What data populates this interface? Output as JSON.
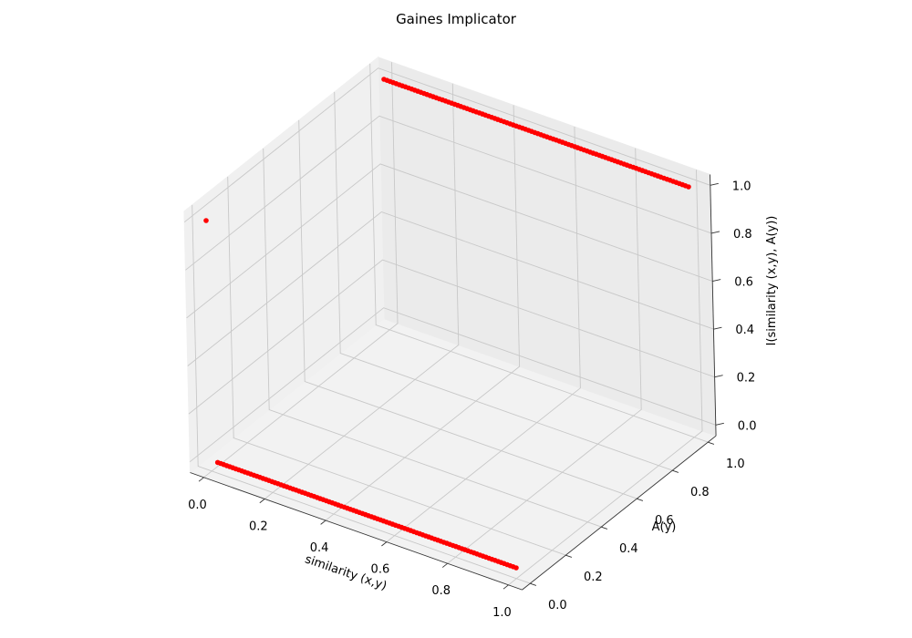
{
  "chart_data": {
    "type": "scatter",
    "projection": "3d",
    "title": "Gaines Implicator",
    "xlabel": "similarity (x,y)",
    "ylabel": "A(y)",
    "zlabel": "I(similarity (x,y), A(y))",
    "xlim": [
      0,
      1
    ],
    "ylim": [
      0,
      1
    ],
    "zlim": [
      0,
      1
    ],
    "x_ticks": [
      "0.0",
      "0.2",
      "0.4",
      "0.6",
      "0.8",
      "1.0"
    ],
    "y_ticks": [
      "0.0",
      "0.2",
      "0.4",
      "0.6",
      "0.8",
      "1.0"
    ],
    "z_ticks": [
      "0.0",
      "0.2",
      "0.4",
      "0.6",
      "0.8",
      "1.0"
    ],
    "grid": true,
    "series": [
      {
        "color": "#ff0000",
        "segments": [
          {
            "from": [
              0.02,
              0.0,
              0.0
            ],
            "to": [
              1.0,
              0.0,
              0.0
            ],
            "points": 100
          },
          {
            "from": [
              0.0,
              1.0,
              1.0
            ],
            "to": [
              1.0,
              1.0,
              1.0
            ],
            "points": 100
          }
        ],
        "points": [
          [
            0.0,
            0.0,
            1.0
          ]
        ]
      }
    ]
  }
}
